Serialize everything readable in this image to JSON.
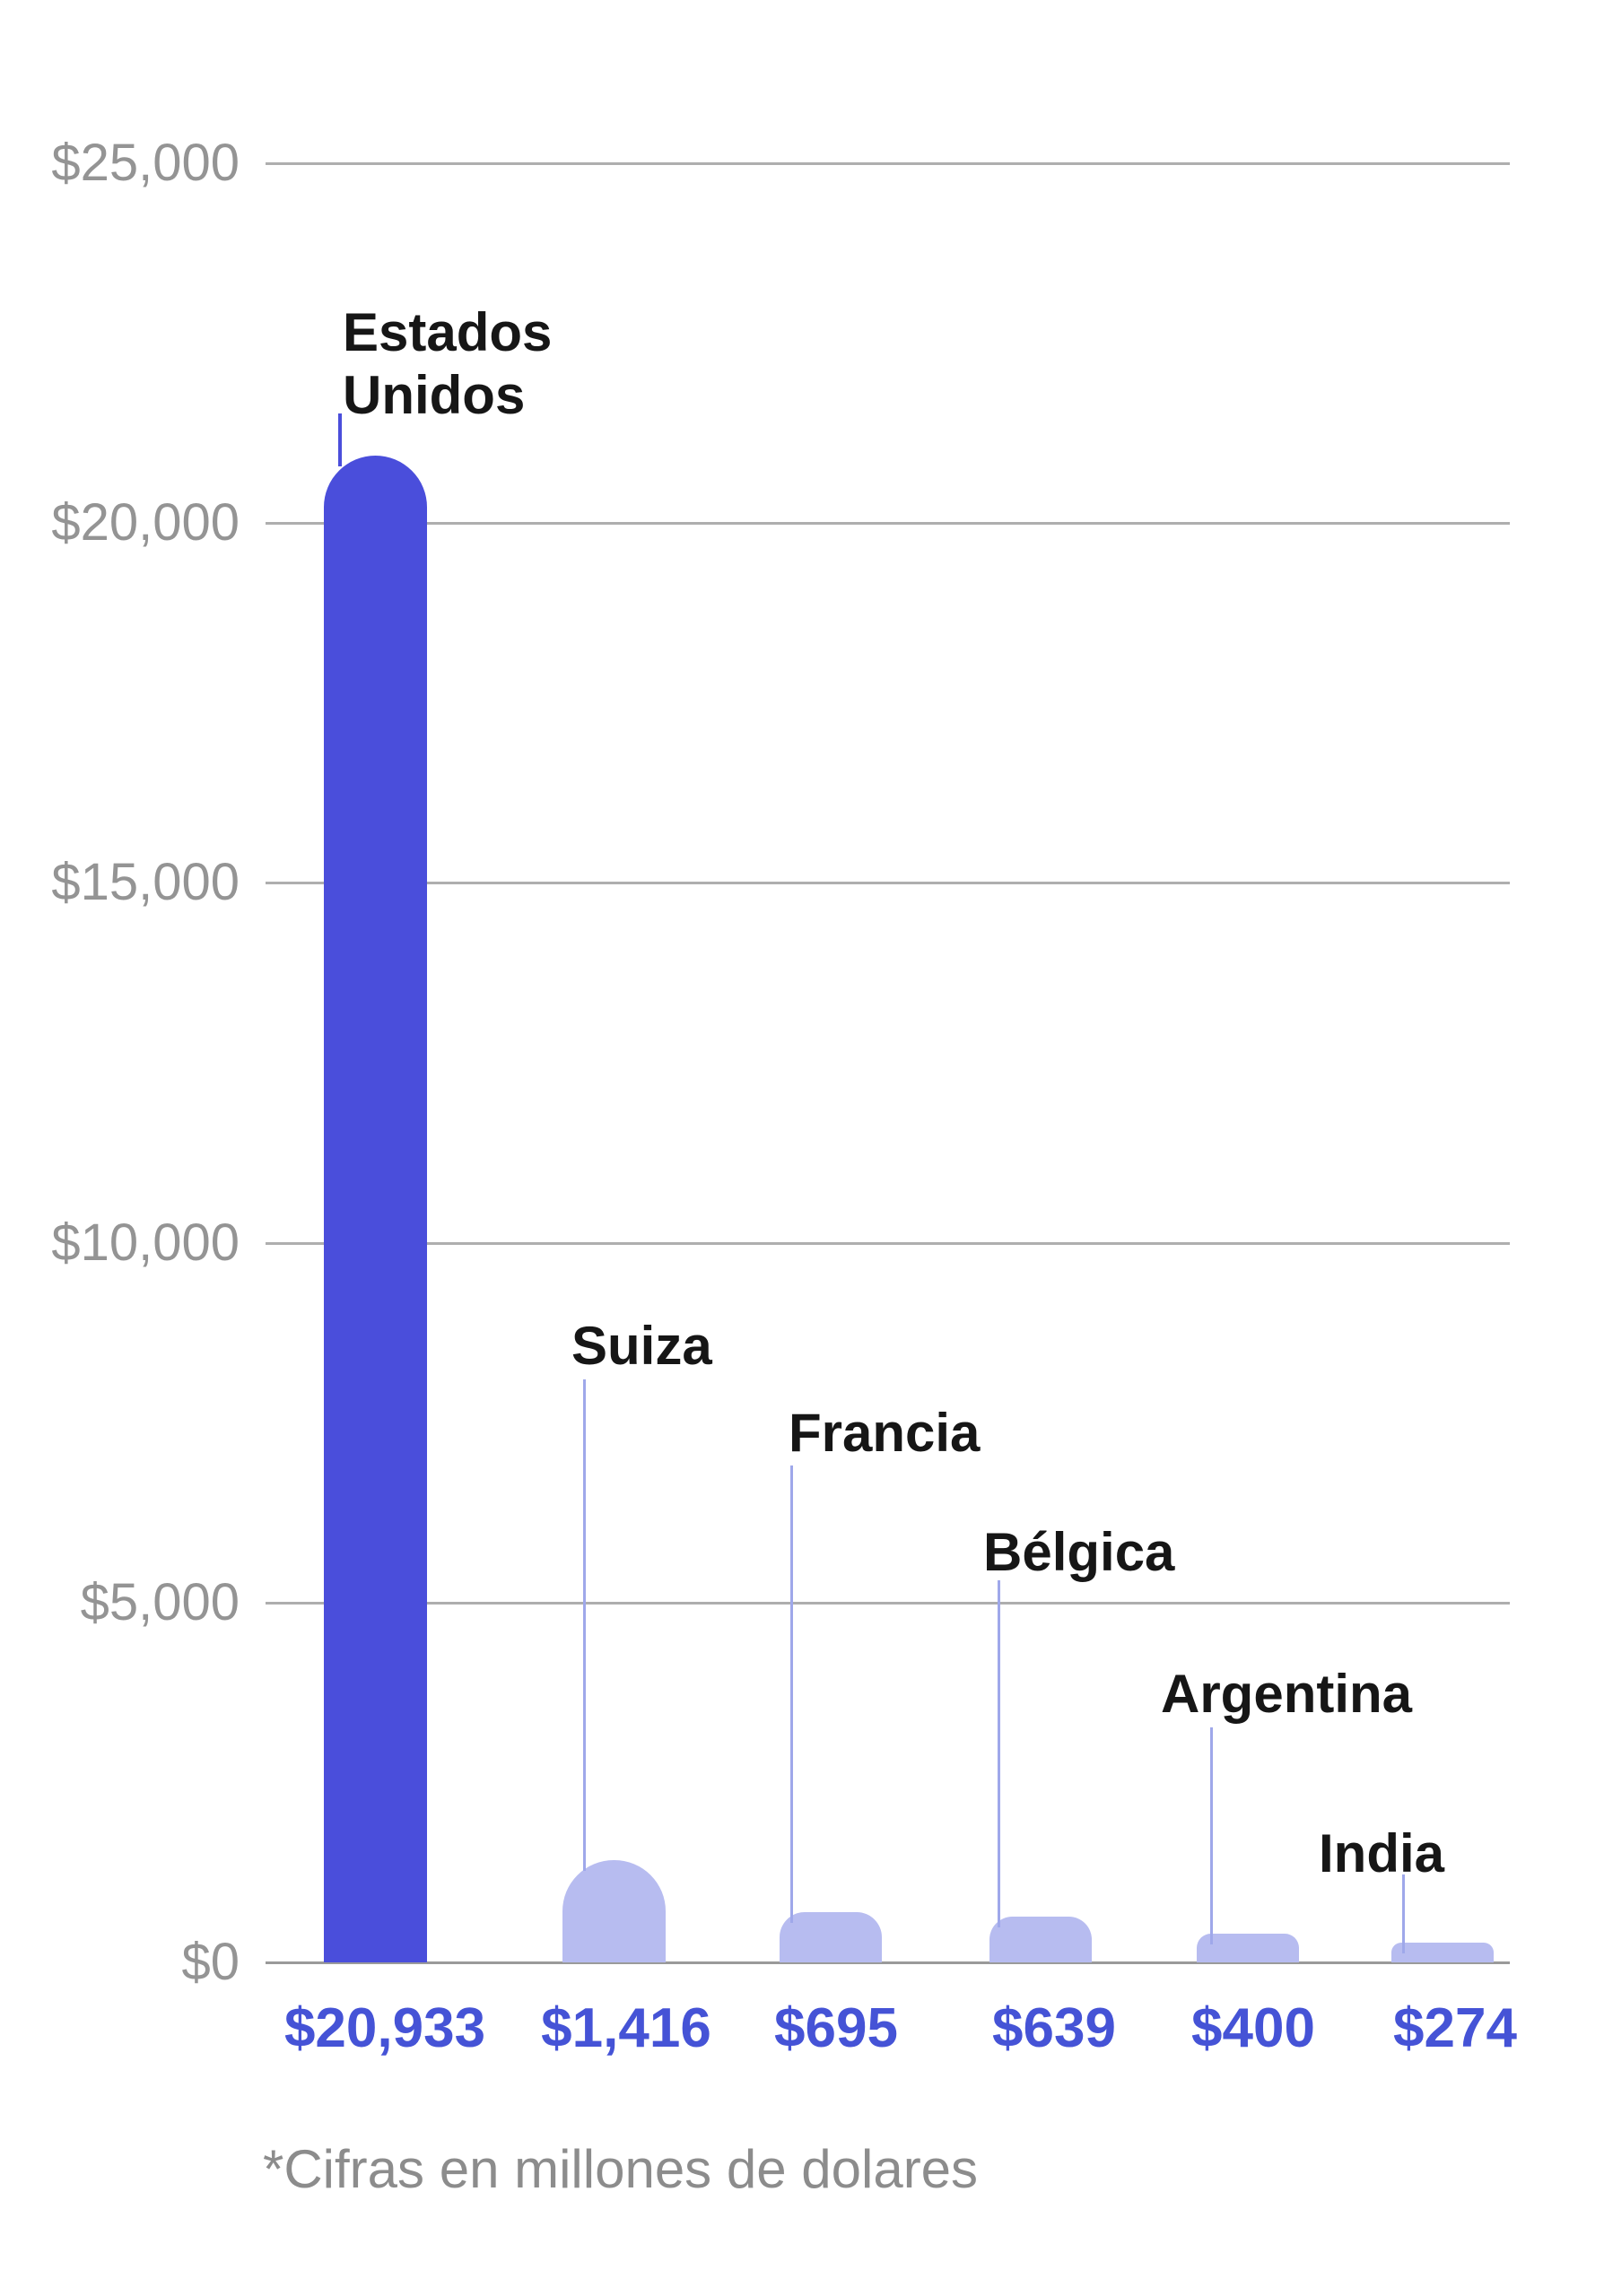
{
  "chart_data": {
    "type": "bar",
    "title": "",
    "categories": [
      "Estados Unidos",
      "Suiza",
      "Francia",
      "Bélgica",
      "Argentina",
      "India"
    ],
    "values": [
      20933,
      1416,
      695,
      639,
      400,
      274
    ],
    "value_labels": [
      "$20,933",
      "$1,416",
      "$695",
      "$639",
      "$400",
      "$274"
    ],
    "series": [
      {
        "name": "Cifras en millones de dolares",
        "values": [
          20933,
          1416,
          695,
          639,
          400,
          274
        ]
      }
    ],
    "xlabel": "",
    "ylabel": "",
    "ylim": [
      0,
      25000
    ],
    "y_ticks": [
      {
        "label": "$25,000",
        "value": 25000
      },
      {
        "label": "$20,000",
        "value": 20000
      },
      {
        "label": "$15,000",
        "value": 15000
      },
      {
        "label": "$10,000",
        "value": 10000
      },
      {
        "label": "$5,000",
        "value": 5000
      },
      {
        "label": "$0",
        "value": 0
      }
    ],
    "grid": "horizontal",
    "legend": "none",
    "highlight_index": 0,
    "footnote": "*Cifras en millones de dolares",
    "colors": {
      "highlight_bar": "#4a4edb",
      "bar": "#b7bcf0",
      "highlight_leader": "#4a4edb",
      "leader": "#9fa8ea",
      "value_label": "#4553d6",
      "category_label": "#161616",
      "axis_label": "#949494",
      "gridline": "#aeaeae",
      "baseline": "#9a9a9a",
      "background": "#ffffff"
    }
  }
}
